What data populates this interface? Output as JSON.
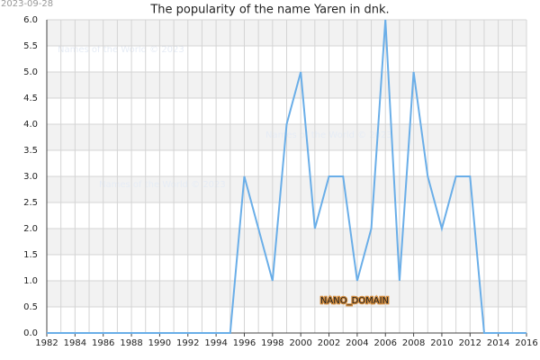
{
  "chart_data": {
    "type": "line",
    "title": "The popularity of the name Yaren in dnk.",
    "date_stamp": "2023-09-28",
    "watermarks": [
      "Names of the World © 2023",
      "Names of the World © 2023",
      "Names of the World © 2023"
    ],
    "annotation": "NANO_DOMAIN",
    "x": [
      1982,
      1983,
      1984,
      1985,
      1986,
      1987,
      1988,
      1989,
      1990,
      1991,
      1992,
      1993,
      1994,
      1995,
      1996,
      1997,
      1998,
      1999,
      2000,
      2001,
      2002,
      2003,
      2004,
      2005,
      2006,
      2007,
      2008,
      2009,
      2010,
      2011,
      2012,
      2013,
      2014,
      2015,
      2016
    ],
    "series": [
      {
        "color": "#6aaee8",
        "values": [
          0,
          0,
          0,
          0,
          0,
          0,
          0,
          0,
          0,
          0,
          0,
          0,
          0,
          0,
          3,
          2,
          1,
          4,
          5,
          2,
          3,
          3,
          1,
          2,
          6,
          1,
          5,
          3,
          2,
          3,
          3,
          0,
          0,
          0,
          0
        ]
      }
    ],
    "xlim": [
      1982,
      2016
    ],
    "xticks": [
      1982,
      1984,
      1986,
      1988,
      1990,
      1992,
      1994,
      1996,
      1998,
      2000,
      2002,
      2004,
      2006,
      2008,
      2010,
      2012,
      2014,
      2016
    ],
    "ylim": [
      0,
      6
    ],
    "yticks": [
      {
        "value": 0,
        "label": "0.0"
      },
      {
        "value": 0.5,
        "label": "0.5"
      },
      {
        "value": 1,
        "label": "1.0"
      },
      {
        "value": 1.5,
        "label": "1.5"
      },
      {
        "value": 2,
        "label": "2.0"
      },
      {
        "value": 2.5,
        "label": "2.5"
      },
      {
        "value": 3,
        "label": "3.0"
      },
      {
        "value": 3.5,
        "label": "3.5"
      },
      {
        "value": 4,
        "label": "4.0"
      },
      {
        "value": 4.5,
        "label": "4.5"
      },
      {
        "value": 5,
        "label": "5.0"
      },
      {
        "value": 5.5,
        "label": "5.5"
      },
      {
        "value": 6,
        "label": "6.0"
      }
    ],
    "grid": true
  }
}
